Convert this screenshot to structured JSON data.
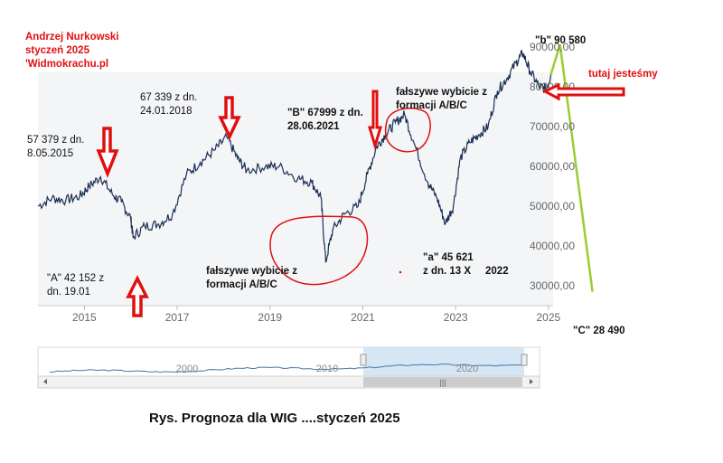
{
  "chart_data": {
    "type": "line",
    "title": "Rys.  Prognoza dla WIG ....styczeń 2025",
    "author": "Andrzej Nurkowski",
    "date_line": "styczeń 2025",
    "site": "'Widmokrachu.pl",
    "x_ticks": [
      "2015",
      "2017",
      "2019",
      "2021",
      "2023",
      "2025"
    ],
    "y_ticks": [
      "30000,00",
      "40000,00",
      "50000,00",
      "60000,00",
      "70000,00",
      "80000,00",
      "90000,00"
    ],
    "ylim": [
      25000,
      95000
    ],
    "xlim": [
      2014.0,
      2025.1
    ],
    "series": [
      {
        "values": [
          [
            2014.0,
            50000
          ],
          [
            2014.3,
            52000
          ],
          [
            2014.6,
            51500
          ],
          [
            2014.9,
            52500
          ],
          [
            2015.1,
            55000
          ],
          [
            2015.35,
            57379
          ],
          [
            2015.6,
            53000
          ],
          [
            2015.8,
            51000
          ],
          [
            2016.0,
            47000
          ],
          [
            2016.05,
            42152
          ],
          [
            2016.3,
            45000
          ],
          [
            2016.6,
            45500
          ],
          [
            2016.9,
            48000
          ],
          [
            2017.2,
            58000
          ],
          [
            2017.5,
            61000
          ],
          [
            2017.8,
            64000
          ],
          [
            2018.07,
            67339
          ],
          [
            2018.3,
            62000
          ],
          [
            2018.5,
            59000
          ],
          [
            2018.9,
            60000
          ],
          [
            2019.2,
            60000
          ],
          [
            2019.6,
            57000
          ],
          [
            2019.9,
            56000
          ],
          [
            2020.1,
            52000
          ],
          [
            2020.2,
            36000
          ],
          [
            2020.35,
            44000
          ],
          [
            2020.6,
            48000
          ],
          [
            2020.9,
            50000
          ],
          [
            2021.1,
            58000
          ],
          [
            2021.3,
            65000
          ],
          [
            2021.49,
            67999
          ],
          [
            2021.7,
            71000
          ],
          [
            2021.9,
            73000
          ],
          [
            2022.1,
            66000
          ],
          [
            2022.4,
            56000
          ],
          [
            2022.6,
            52000
          ],
          [
            2022.78,
            45621
          ],
          [
            2022.95,
            50000
          ],
          [
            2023.1,
            62000
          ],
          [
            2023.3,
            66000
          ],
          [
            2023.5,
            68000
          ],
          [
            2023.7,
            70000
          ],
          [
            2023.9,
            79000
          ],
          [
            2024.1,
            82000
          ],
          [
            2024.3,
            86000
          ],
          [
            2024.45,
            88500
          ],
          [
            2024.6,
            84000
          ],
          [
            2024.8,
            80000
          ],
          [
            2024.95,
            79500
          ],
          [
            2025.05,
            83000
          ]
        ]
      },
      {
        "kind": "forecast",
        "values": [
          [
            2025.05,
            83000
          ],
          [
            2025.25,
            90580
          ],
          [
            2025.95,
            28490
          ]
        ]
      }
    ],
    "annotations": {
      "a_low": [
        "\"A\" 42 152 z",
        "dn. 19.01"
      ],
      "p2015": [
        "57 379 z dn.",
        "8.05.2015"
      ],
      "p2018": [
        "67 339 z dn.",
        "24.01.2018"
      ],
      "b_point": [
        "\"B\" 67999 z dn.",
        "28.06.2021"
      ],
      "false_breakout_1": [
        "fałszywe wybicie z",
        "formacji A/B/C"
      ],
      "false_breakout_2": [
        "fałszywe wybicie z",
        "formacji A/B/C"
      ],
      "a_small": [
        "\"a\" 45 621",
        "z dn. 13 X     2022"
      ],
      "b_small": "\"b\" 90 580",
      "c_big": "\"C\" 28 490",
      "here": "tutaj jesteśmy"
    },
    "navigator": {
      "x_ticks": [
        "2000",
        "2010",
        "2020"
      ],
      "scroll_glyph": "|||"
    },
    "colors": {
      "line": "#1c2f55",
      "forecast": "#9acd32",
      "marker": "#e01010",
      "plot_bg": "#f4f5f7",
      "navigator_fill": "#cfe2f3"
    }
  }
}
